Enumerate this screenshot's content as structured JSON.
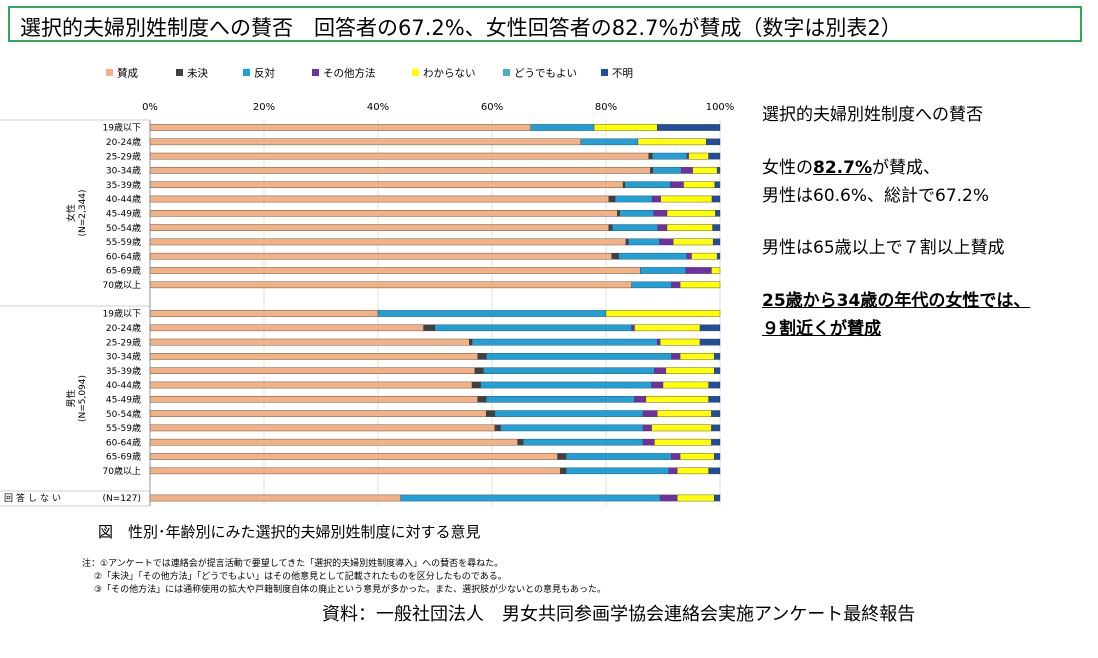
{
  "header": {
    "title": "選択的夫婦別姓制度への賛否　回答者の67.2%、女性回答者の82.7%が賛成（数字は別表2）"
  },
  "side_text": {
    "heading": "選択的夫婦別姓制度への賛否",
    "line1_pre": "女性の",
    "line1_bold": "82.7%",
    "line1_post": "が賛成、",
    "line2": "男性は60.6%、総計で67.2%",
    "line3": "男性は65歳以上で７割以上賛成",
    "line4": "25歳から34歳の年代の女性では、",
    "line5": "９割近くが賛成"
  },
  "caption": "図　性別･年齢別にみた選択的夫婦別姓制度に対する意見",
  "notes": [
    "注：①アンケートでは連絡会が提言活動で要望してきた「選択的夫婦別姓制度導入」への賛否を尋ねた。",
    "②「未決」「その他方法」「どうでもよい」はその他意見として記載されたものを区分したものである。",
    "③「その他方法」には通称使用の拡大や戸籍制度自体の廃止という意見が多かった。また、選択肢が少ないとの意見もあった。"
  ],
  "source": "資料：一般社団法人　男女共同参画学協会連絡会実施アンケート最終報告",
  "chart_data": {
    "type": "bar",
    "orientation": "horizontal",
    "stacked": true,
    "normalized": true,
    "xlim": [
      0,
      100
    ],
    "xticks": [
      "0%",
      "20%",
      "40%",
      "60%",
      "80%",
      "100%"
    ],
    "legend_position": "top",
    "series_names": [
      "賛成",
      "未決",
      "反対",
      "その他方法",
      "わからない",
      "どうでもよい",
      "不明"
    ],
    "colors": [
      "#f4b183",
      "#404040",
      "#1fa0d8",
      "#7030a0",
      "#ffff00",
      "#4bacc6",
      "#1f4e9c"
    ],
    "groups": [
      {
        "label": "女性",
        "n_label": "(N=2,344)",
        "rows": [
          {
            "label": "19歳以下",
            "values": [
              66.8,
              0,
              11.1,
              0,
              11.1,
              0,
              11.0
            ]
          },
          {
            "label": "20-24歳",
            "values": [
              75.6,
              0,
              10.0,
              0,
              12.0,
              0,
              2.4
            ]
          },
          {
            "label": "25-29歳",
            "values": [
              87.5,
              0.6,
              6.1,
              0.3,
              3.5,
              0,
              2.0
            ]
          },
          {
            "label": "30-34歳",
            "values": [
              87.8,
              0.4,
              5.0,
              2.0,
              4.3,
              0,
              0.5
            ]
          },
          {
            "label": "35-39歳",
            "values": [
              83.0,
              0.3,
              8.0,
              2.3,
              5.5,
              0,
              0.9
            ]
          },
          {
            "label": "40-44歳",
            "values": [
              80.5,
              1.1,
              6.5,
              1.5,
              9.0,
              0,
              1.4
            ]
          },
          {
            "label": "45-49歳",
            "values": [
              82.0,
              0.4,
              6.0,
              2.3,
              8.5,
              0,
              0.8
            ]
          },
          {
            "label": "50-54歳",
            "values": [
              80.5,
              0.6,
              8.0,
              1.6,
              8.0,
              0,
              1.3
            ]
          },
          {
            "label": "55-59歳",
            "values": [
              83.5,
              0.4,
              5.5,
              2.4,
              7.0,
              0,
              1.2
            ]
          },
          {
            "label": "60-64歳",
            "values": [
              81.0,
              1.2,
              12.0,
              0.8,
              4.5,
              0,
              0.5
            ]
          },
          {
            "label": "65-69歳",
            "values": [
              86.0,
              0,
              8.0,
              4.5,
              1.5,
              0,
              0
            ]
          },
          {
            "label": "70歳以上",
            "values": [
              84.5,
              0,
              7.0,
              1.5,
              7.0,
              0,
              0
            ]
          }
        ]
      },
      {
        "label": "男性",
        "n_label": "(N=5,094)",
        "rows": [
          {
            "label": "19歳以下",
            "values": [
              40.0,
              0,
              40.0,
              0,
              20.0,
              0,
              0
            ]
          },
          {
            "label": "20-24歳",
            "values": [
              48.0,
              2.0,
              34.5,
              0.5,
              11.5,
              0,
              3.5
            ]
          },
          {
            "label": "25-29歳",
            "values": [
              56.0,
              0.5,
              32.5,
              0.5,
              7.0,
              0,
              3.5
            ]
          },
          {
            "label": "30-34歳",
            "values": [
              57.5,
              1.5,
              32.5,
              1.5,
              6.0,
              0,
              1.0
            ]
          },
          {
            "label": "35-39歳",
            "values": [
              57.0,
              1.5,
              30.0,
              2.0,
              8.5,
              0,
              1.0
            ]
          },
          {
            "label": "40-44歳",
            "values": [
              56.5,
              1.5,
              30.0,
              2.0,
              8.0,
              0,
              2.0
            ]
          },
          {
            "label": "45-49歳",
            "values": [
              57.5,
              1.5,
              26.0,
              2.0,
              11.0,
              0,
              2.0
            ]
          },
          {
            "label": "50-54歳",
            "values": [
              59.0,
              1.5,
              26.0,
              2.5,
              9.5,
              0,
              1.5
            ]
          },
          {
            "label": "55-59歳",
            "values": [
              60.5,
              1.0,
              25.0,
              1.5,
              10.5,
              0,
              1.5
            ]
          },
          {
            "label": "60-64歳",
            "values": [
              64.5,
              1.0,
              21.0,
              2.0,
              10.0,
              0,
              1.5
            ]
          },
          {
            "label": "65-69歳",
            "values": [
              71.5,
              1.5,
              18.5,
              1.5,
              6.0,
              0,
              1.0
            ]
          },
          {
            "label": "70歳以上",
            "values": [
              72.0,
              1.0,
              18.0,
              1.5,
              5.5,
              0,
              2.0
            ]
          }
        ]
      },
      {
        "label": "回答しない",
        "n_label": "(N=127)",
        "rows": [
          {
            "label": "",
            "values": [
              44.0,
              0,
              45.5,
              3.0,
              6.5,
              0,
              1.0
            ]
          }
        ]
      }
    ]
  }
}
